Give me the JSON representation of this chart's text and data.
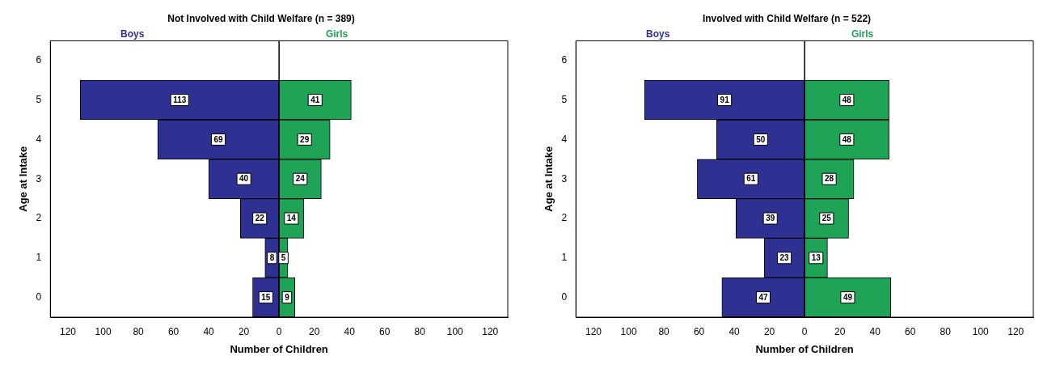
{
  "chart_data": [
    {
      "type": "bar",
      "title": "Not Involved with Child Welfare (n = 389)",
      "xlabel": "Number of Children",
      "ylabel": "Age at Intake",
      "orientation": "horizontal",
      "legend": false,
      "grid": false,
      "categories": [
        "6",
        "5",
        "4",
        "3",
        "2",
        "1",
        "0"
      ],
      "series": [
        {
          "name": "Boys",
          "color": "#2e3192",
          "values": [
            null,
            113,
            69,
            40,
            22,
            8,
            15
          ],
          "base": [
            null,
            -113,
            -69,
            -40,
            -22,
            -8,
            -15
          ]
        },
        {
          "name": "Girls",
          "color": "#1fa356",
          "values": [
            null,
            41,
            29,
            24,
            14,
            5,
            9
          ]
        }
      ],
      "data_labels": true,
      "xlim": [
        -130,
        130
      ],
      "xticks": [
        {
          "value": -120,
          "label": "120"
        },
        {
          "value": -100,
          "label": "100"
        },
        {
          "value": -80,
          "label": "80"
        },
        {
          "value": -60,
          "label": "60"
        },
        {
          "value": -40,
          "label": "40"
        },
        {
          "value": -20,
          "label": "20"
        },
        0,
        20,
        40,
        60,
        80,
        100,
        120
      ],
      "ref_lines": [
        {
          "axis": "x",
          "value": 0,
          "color": "#000000"
        }
      ]
    },
    {
      "type": "bar",
      "title": "Involved with Child Welfare (n = 522)",
      "xlabel": "Number of Children",
      "ylabel": "Age at Intake",
      "orientation": "horizontal",
      "legend": false,
      "grid": false,
      "categories": [
        "6",
        "5",
        "4",
        "3",
        "2",
        "1",
        "0"
      ],
      "series": [
        {
          "name": "Boys",
          "color": "#2e3192",
          "values": [
            null,
            91,
            50,
            61,
            39,
            23,
            47
          ],
          "base": [
            null,
            -91,
            -50,
            -61,
            -39,
            -23,
            -47
          ]
        },
        {
          "name": "Girls",
          "color": "#1fa356",
          "values": [
            null,
            48,
            48,
            28,
            25,
            13,
            49
          ]
        }
      ],
      "data_labels": true,
      "xlim": [
        -130,
        130
      ],
      "xticks": [
        {
          "value": -120,
          "label": "120"
        },
        {
          "value": -100,
          "label": "100"
        },
        {
          "value": -80,
          "label": "80"
        },
        {
          "value": -60,
          "label": "60"
        },
        {
          "value": -40,
          "label": "40"
        },
        {
          "value": -20,
          "label": "20"
        },
        0,
        20,
        40,
        60,
        80,
        100,
        120
      ],
      "ref_lines": [
        {
          "axis": "x",
          "value": 0,
          "color": "#000000"
        }
      ]
    }
  ]
}
